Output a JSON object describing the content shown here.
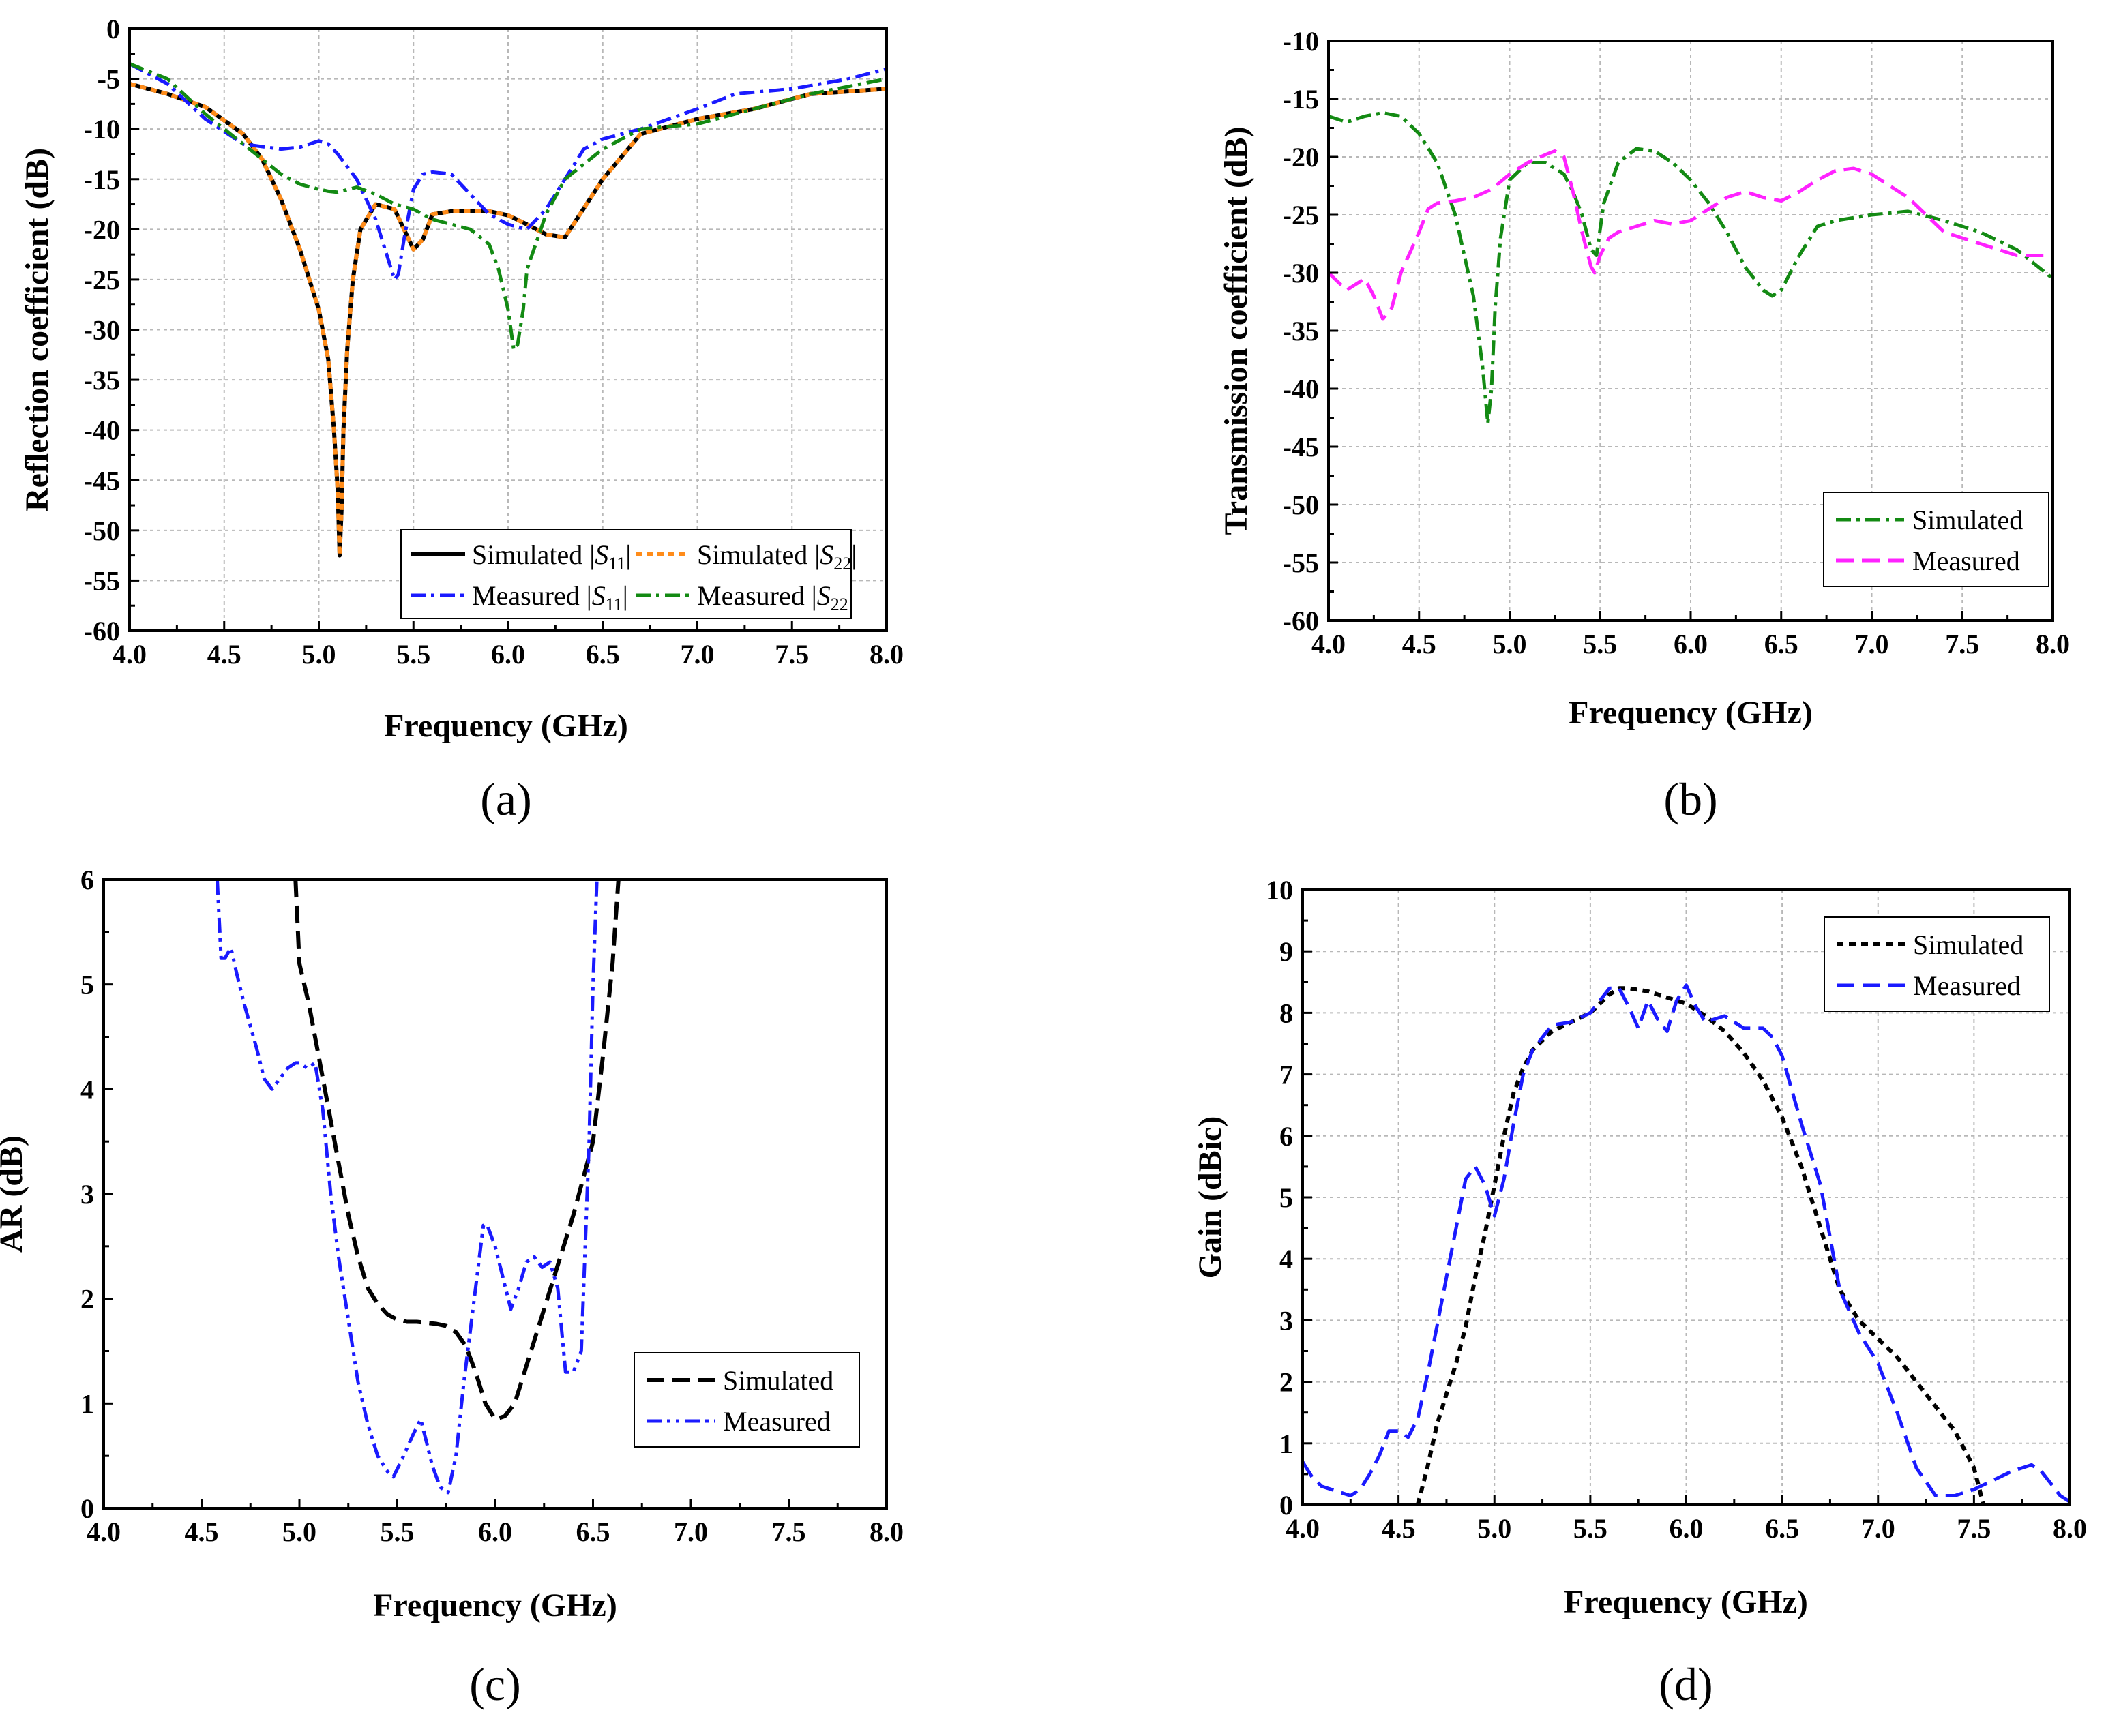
{
  "figure": {
    "panels": [
      "a",
      "b",
      "c",
      "d"
    ]
  },
  "chart_data": [
    {
      "id": "a",
      "type": "line",
      "caption": "(a)",
      "xlabel": "Frequency (GHz)",
      "ylabel": "Reflection coefficient (dB)",
      "xlim": [
        4.0,
        8.0
      ],
      "ylim": [
        -60,
        0
      ],
      "xticks": [
        "4.0",
        "4.5",
        "5.0",
        "5.5",
        "6.0",
        "6.5",
        "7.0",
        "7.5",
        "8.0"
      ],
      "yticks": [
        "0",
        "-5",
        "-10",
        "-15",
        "-20",
        "-25",
        "-30",
        "-35",
        "-40",
        "-45",
        "-50",
        "-55",
        "-60"
      ],
      "grid": true,
      "legend": {
        "position": "bottom-right",
        "columns": 2
      },
      "series": [
        {
          "name": "Simulated |S11|",
          "legend": {
            "prefix": "Simulated |",
            "sym": "S",
            "sub": "11",
            "suffix": "|"
          },
          "color": "#000000",
          "dash": "",
          "width": 6,
          "x": [
            4.0,
            4.2,
            4.4,
            4.6,
            4.7,
            4.8,
            4.9,
            5.0,
            5.05,
            5.08,
            5.1,
            5.11,
            5.12,
            5.13,
            5.15,
            5.18,
            5.22,
            5.3,
            5.4,
            5.45,
            5.5,
            5.55,
            5.6,
            5.7,
            5.9,
            6.0,
            6.1,
            6.2,
            6.3,
            6.5,
            6.7,
            7.0,
            7.3,
            7.6,
            8.0
          ],
          "y": [
            -5.5,
            -6.5,
            -7.8,
            -10.5,
            -13,
            -17,
            -22,
            -28,
            -33,
            -40,
            -46,
            -52.5,
            -48,
            -40,
            -32,
            -25,
            -20,
            -17.5,
            -18,
            -20,
            -22,
            -21,
            -18.5,
            -18.2,
            -18.2,
            -18.6,
            -19.5,
            -20.5,
            -20.8,
            -15,
            -10.5,
            -9,
            -8,
            -6.5,
            -6
          ]
        },
        {
          "name": "Simulated |S22|",
          "legend": {
            "prefix": "Simulated |",
            "sym": "S",
            "sub": "22",
            "suffix": "|"
          },
          "color": "#ff8c1a",
          "dash": "9 7",
          "width": 6,
          "x": [
            4.0,
            4.2,
            4.4,
            4.6,
            4.7,
            4.8,
            4.9,
            5.0,
            5.05,
            5.08,
            5.1,
            5.11,
            5.12,
            5.13,
            5.15,
            5.18,
            5.22,
            5.3,
            5.4,
            5.45,
            5.5,
            5.55,
            5.6,
            5.7,
            5.9,
            6.0,
            6.1,
            6.2,
            6.3,
            6.5,
            6.7,
            7.0,
            7.3,
            7.6,
            8.0
          ],
          "y": [
            -5.5,
            -6.5,
            -7.8,
            -10.5,
            -13,
            -17,
            -22,
            -28,
            -33,
            -40,
            -46,
            -52.5,
            -48,
            -40,
            -32,
            -25,
            -20,
            -17.5,
            -18,
            -20,
            -22,
            -21,
            -18.5,
            -18.2,
            -18.2,
            -18.6,
            -19.5,
            -20.5,
            -20.8,
            -15,
            -10.5,
            -9,
            -8,
            -6.5,
            -6
          ]
        },
        {
          "name": "Measured |S11|",
          "legend": {
            "prefix": "Measured |",
            "sym": "S",
            "sub": "11",
            "suffix": "|"
          },
          "color": "#1a1aff",
          "dash": "22 8 5 8",
          "width": 5,
          "x": [
            4.0,
            4.2,
            4.4,
            4.6,
            4.8,
            4.9,
            5.0,
            5.05,
            5.1,
            5.2,
            5.3,
            5.35,
            5.4,
            5.42,
            5.45,
            5.5,
            5.55,
            5.6,
            5.7,
            5.8,
            5.9,
            6.0,
            6.1,
            6.2,
            6.3,
            6.4,
            6.5,
            6.7,
            7.0,
            7.2,
            7.5,
            7.8,
            8.0
          ],
          "y": [
            -3.5,
            -5.5,
            -9,
            -11.5,
            -12,
            -11.8,
            -11.2,
            -11.5,
            -12.5,
            -15,
            -19,
            -22,
            -25,
            -24.5,
            -21,
            -16,
            -14.5,
            -14.3,
            -14.5,
            -16.5,
            -18.5,
            -19.5,
            -20,
            -18,
            -15,
            -12,
            -11,
            -10,
            -8,
            -6.5,
            -6,
            -5,
            -4
          ]
        },
        {
          "name": "Measured |S22|",
          "legend": {
            "prefix": "Measured |",
            "sym": "S",
            "sub": "22",
            "suffix": "|"
          },
          "color": "#138a13",
          "dash": "22 8 5 8",
          "width": 5,
          "x": [
            4.0,
            4.2,
            4.4,
            4.6,
            4.8,
            4.9,
            5.0,
            5.05,
            5.1,
            5.2,
            5.3,
            5.4,
            5.5,
            5.6,
            5.8,
            5.9,
            5.95,
            6.0,
            6.03,
            6.05,
            6.08,
            6.1,
            6.2,
            6.3,
            6.5,
            6.7,
            7.0,
            7.3,
            7.6,
            8.0
          ],
          "y": [
            -3.5,
            -5,
            -8.5,
            -11.5,
            -14.5,
            -15.5,
            -16,
            -16.2,
            -16.3,
            -15.8,
            -16.5,
            -17.5,
            -18,
            -19,
            -20,
            -21.5,
            -24,
            -28,
            -32,
            -31.5,
            -28,
            -24,
            -18.5,
            -15,
            -12,
            -10,
            -9.5,
            -8,
            -6.5,
            -5
          ]
        }
      ]
    },
    {
      "id": "b",
      "type": "line",
      "caption": "(b)",
      "xlabel": "Frequency (GHz)",
      "ylabel": "Transmission coefficient (dB)",
      "xlim": [
        4.0,
        8.0
      ],
      "ylim": [
        -60,
        -10
      ],
      "xticks": [
        "4.0",
        "4.5",
        "5.0",
        "5.5",
        "6.0",
        "6.5",
        "7.0",
        "7.5",
        "8.0"
      ],
      "yticks": [
        "-10",
        "-15",
        "-20",
        "-25",
        "-30",
        "-35",
        "-40",
        "-45",
        "-50",
        "-55",
        "-60"
      ],
      "grid": true,
      "legend": {
        "position": "bottom-right",
        "columns": 1
      },
      "series": [
        {
          "name": "Simulated",
          "color": "#138a13",
          "dash": "22 8 5 8",
          "width": 5,
          "x": [
            4.0,
            4.1,
            4.2,
            4.3,
            4.4,
            4.5,
            4.6,
            4.7,
            4.8,
            4.85,
            4.88,
            4.9,
            4.92,
            4.95,
            5.0,
            5.1,
            5.2,
            5.3,
            5.35,
            5.4,
            5.45,
            5.48,
            5.52,
            5.6,
            5.7,
            5.8,
            5.9,
            6.0,
            6.1,
            6.2,
            6.3,
            6.4,
            6.45,
            6.5,
            6.6,
            6.7,
            6.8,
            7.0,
            7.2,
            7.4,
            7.6,
            7.8,
            8.0
          ],
          "y": [
            -16.5,
            -17,
            -16.5,
            -16.2,
            -16.5,
            -18,
            -20.5,
            -25,
            -32,
            -38,
            -43,
            -40,
            -33,
            -27,
            -22,
            -20.5,
            -20.5,
            -21.5,
            -23,
            -25,
            -28,
            -28.5,
            -24,
            -20.5,
            -19.3,
            -19.5,
            -20.5,
            -22,
            -24,
            -26.5,
            -29.5,
            -31.5,
            -32,
            -31.5,
            -28.5,
            -26,
            -25.5,
            -25,
            -24.7,
            -25.5,
            -26.5,
            -28,
            -30.5
          ]
        },
        {
          "name": "Measured",
          "color": "#ff22ff",
          "dash": "26 12",
          "width": 5,
          "x": [
            4.0,
            4.1,
            4.15,
            4.2,
            4.25,
            4.3,
            4.35,
            4.4,
            4.5,
            4.55,
            4.6,
            4.7,
            4.8,
            4.9,
            5.0,
            5.1,
            5.2,
            5.25,
            5.3,
            5.35,
            5.4,
            5.45,
            5.47,
            5.5,
            5.55,
            5.6,
            5.7,
            5.8,
            5.9,
            6.0,
            6.1,
            6.2,
            6.3,
            6.4,
            6.5,
            6.6,
            6.7,
            6.8,
            6.9,
            7.0,
            7.2,
            7.4,
            7.6,
            7.8,
            8.0
          ],
          "y": [
            -30,
            -31.5,
            -31,
            -30.5,
            -32,
            -34,
            -33,
            -30,
            -26.5,
            -24.5,
            -24,
            -23.8,
            -23.5,
            -22.8,
            -21.5,
            -20.5,
            -19.8,
            -19.5,
            -20,
            -23,
            -26.5,
            -29.5,
            -30,
            -28.5,
            -27,
            -26.5,
            -26,
            -25.5,
            -25.8,
            -25.5,
            -24.5,
            -23.5,
            -23,
            -23.5,
            -23.8,
            -23,
            -22,
            -21.2,
            -21,
            -21.5,
            -23.5,
            -26.5,
            -27.5,
            -28.5,
            -28.5
          ]
        }
      ]
    },
    {
      "id": "c",
      "type": "line",
      "caption": "(c)",
      "xlabel": "Frequency (GHz)",
      "ylabel": "AR (dB)",
      "xlim": [
        4.0,
        8.0
      ],
      "ylim": [
        0,
        6
      ],
      "xticks": [
        "4.0",
        "4.5",
        "5.0",
        "5.5",
        "6.0",
        "6.5",
        "7.0",
        "7.5",
        "8.0"
      ],
      "yticks": [
        "0",
        "1",
        "2",
        "3",
        "4",
        "5",
        "6"
      ],
      "grid": false,
      "legend": {
        "position": "bottom-right",
        "columns": 1
      },
      "series": [
        {
          "name": "Simulated",
          "color": "#000000",
          "dash": "26 12",
          "width": 6,
          "x": [
            4.98,
            5.0,
            5.05,
            5.1,
            5.15,
            5.2,
            5.25,
            5.3,
            5.35,
            5.4,
            5.45,
            5.5,
            5.55,
            5.6,
            5.65,
            5.7,
            5.75,
            5.8,
            5.85,
            5.9,
            5.95,
            6.0,
            6.05,
            6.1,
            6.15,
            6.2,
            6.3,
            6.4,
            6.5,
            6.55,
            6.6,
            6.63
          ],
          "y": [
            6.0,
            5.2,
            4.8,
            4.3,
            3.8,
            3.3,
            2.8,
            2.4,
            2.1,
            1.95,
            1.85,
            1.8,
            1.78,
            1.78,
            1.77,
            1.76,
            1.74,
            1.68,
            1.55,
            1.3,
            1.0,
            0.85,
            0.88,
            1.0,
            1.3,
            1.6,
            2.2,
            2.8,
            3.5,
            4.3,
            5.2,
            6.0
          ]
        },
        {
          "name": "Measured",
          "color": "#1a1aff",
          "dash": "22 8 5 8 5 8",
          "width": 5,
          "x": [
            4.58,
            4.6,
            4.62,
            4.65,
            4.68,
            4.72,
            4.78,
            4.82,
            4.86,
            4.9,
            4.94,
            4.98,
            5.0,
            5.04,
            5.08,
            5.12,
            5.16,
            5.2,
            5.25,
            5.3,
            5.35,
            5.4,
            5.45,
            5.48,
            5.52,
            5.58,
            5.62,
            5.64,
            5.68,
            5.72,
            5.76,
            5.8,
            5.84,
            5.88,
            5.92,
            5.94,
            5.96,
            6.0,
            6.04,
            6.08,
            6.12,
            6.16,
            6.2,
            6.24,
            6.28,
            6.32,
            6.36,
            6.4,
            6.44,
            6.48,
            6.5,
            6.52
          ],
          "y": [
            6.0,
            5.25,
            5.25,
            5.35,
            5.1,
            4.8,
            4.4,
            4.1,
            4.0,
            4.1,
            4.2,
            4.25,
            4.25,
            4.2,
            4.25,
            3.8,
            3.0,
            2.4,
            1.8,
            1.2,
            0.8,
            0.5,
            0.35,
            0.3,
            0.45,
            0.7,
            0.85,
            0.7,
            0.4,
            0.2,
            0.15,
            0.5,
            1.2,
            1.8,
            2.4,
            2.7,
            2.7,
            2.5,
            2.2,
            1.9,
            2.1,
            2.35,
            2.4,
            2.3,
            2.35,
            2.1,
            1.3,
            1.3,
            1.5,
            3.5,
            5.0,
            6.0
          ]
        }
      ]
    },
    {
      "id": "d",
      "type": "line",
      "caption": "(d)",
      "xlabel": "Frequency (GHz)",
      "ylabel": "Gain (dBic)",
      "xlim": [
        4.0,
        8.0
      ],
      "ylim": [
        0,
        10
      ],
      "xticks": [
        "4.0",
        "4.5",
        "5.0",
        "5.5",
        "6.0",
        "6.5",
        "7.0",
        "7.5",
        "8.0"
      ],
      "yticks": [
        "0",
        "1",
        "2",
        "3",
        "4",
        "5",
        "6",
        "7",
        "8",
        "9",
        "10"
      ],
      "grid": true,
      "legend": {
        "position": "top-right",
        "columns": 1
      },
      "series": [
        {
          "name": "Simulated",
          "color": "#000000",
          "dash": "10 8",
          "width": 6,
          "x": [
            4.6,
            4.65,
            4.7,
            4.75,
            4.8,
            4.85,
            4.9,
            4.95,
            5.0,
            5.05,
            5.1,
            5.15,
            5.2,
            5.3,
            5.4,
            5.5,
            5.6,
            5.65,
            5.7,
            5.8,
            5.9,
            6.0,
            6.1,
            6.2,
            6.3,
            6.4,
            6.5,
            6.6,
            6.7,
            6.8,
            6.9,
            7.0,
            7.1,
            7.2,
            7.3,
            7.4,
            7.5,
            7.55
          ],
          "y": [
            0.0,
            0.6,
            1.3,
            1.8,
            2.3,
            2.9,
            3.7,
            4.4,
            5.2,
            6.0,
            6.7,
            7.1,
            7.4,
            7.7,
            7.85,
            8.0,
            8.3,
            8.4,
            8.4,
            8.35,
            8.25,
            8.15,
            7.95,
            7.7,
            7.35,
            6.9,
            6.3,
            5.5,
            4.5,
            3.5,
            3.0,
            2.7,
            2.4,
            2.0,
            1.6,
            1.2,
            0.6,
            0.0
          ]
        },
        {
          "name": "Measured",
          "color": "#1a1aff",
          "dash": "26 12",
          "width": 5,
          "x": [
            4.0,
            4.05,
            4.1,
            4.15,
            4.2,
            4.25,
            4.3,
            4.35,
            4.4,
            4.45,
            4.5,
            4.55,
            4.6,
            4.65,
            4.7,
            4.75,
            4.8,
            4.85,
            4.9,
            4.95,
            5.0,
            5.05,
            5.1,
            5.15,
            5.2,
            5.3,
            5.4,
            5.5,
            5.6,
            5.65,
            5.7,
            5.75,
            5.8,
            5.85,
            5.9,
            5.95,
            6.0,
            6.05,
            6.1,
            6.15,
            6.2,
            6.25,
            6.3,
            6.35,
            6.4,
            6.45,
            6.5,
            6.6,
            6.7,
            6.8,
            6.9,
            7.0,
            7.1,
            7.2,
            7.3,
            7.4,
            7.5,
            7.6,
            7.7,
            7.8,
            7.85,
            7.9,
            7.95,
            8.0
          ],
          "y": [
            0.7,
            0.45,
            0.3,
            0.25,
            0.2,
            0.15,
            0.25,
            0.5,
            0.8,
            1.2,
            1.2,
            1.1,
            1.4,
            2.1,
            2.9,
            3.7,
            4.5,
            5.3,
            5.5,
            5.2,
            4.7,
            5.3,
            6.2,
            7.0,
            7.4,
            7.8,
            7.85,
            8.0,
            8.4,
            8.4,
            8.1,
            7.75,
            8.2,
            7.9,
            7.7,
            8.2,
            8.45,
            8.1,
            7.85,
            7.9,
            7.95,
            7.85,
            7.75,
            7.75,
            7.75,
            7.6,
            7.3,
            6.2,
            5.2,
            3.5,
            2.8,
            2.3,
            1.5,
            0.6,
            0.15,
            0.15,
            0.25,
            0.4,
            0.55,
            0.65,
            0.55,
            0.35,
            0.15,
            0.05
          ]
        }
      ]
    }
  ]
}
